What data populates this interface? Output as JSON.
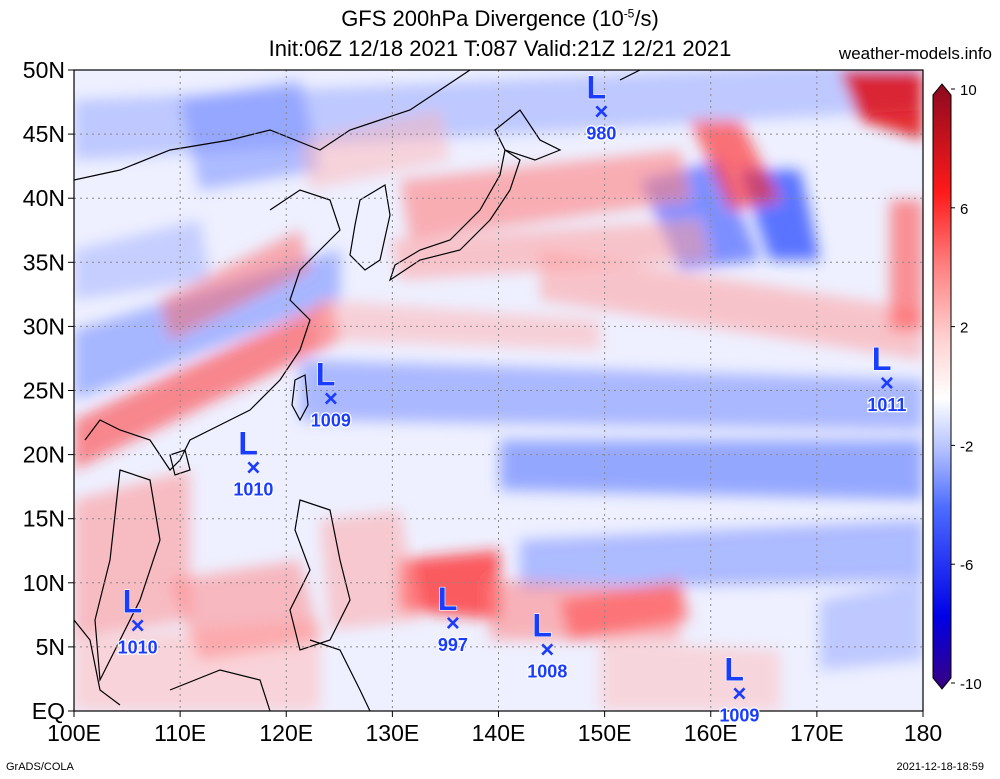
{
  "header": {
    "title_main": "GFS 200hPa Divergence (10",
    "title_sup": "-5",
    "title_tail": "/s)",
    "subtitle": "Init:06Z 12/18 2021 T:087 Valid:21Z 12/21 2021",
    "site": "weather-models.info"
  },
  "footer": {
    "left": "GrADS/COLA",
    "right": "2021-12-18-18:59"
  },
  "map": {
    "lon_labels": [
      "100E",
      "110E",
      "120E",
      "130E",
      "140E",
      "150E",
      "160E",
      "170E",
      "180"
    ],
    "lat_labels": [
      "EQ",
      "5N",
      "10N",
      "15N",
      "20N",
      "25N",
      "30N",
      "35N",
      "40N",
      "45N",
      "50N"
    ],
    "lon_range": [
      100,
      180
    ],
    "lat_range": [
      0,
      50
    ],
    "grid": "dotted"
  },
  "colorbar": {
    "ticks": [
      "10",
      "6",
      "2",
      "-2",
      "-6",
      "-10"
    ],
    "colors": [
      "#3a0080",
      "#0000e6",
      "#4d6cff",
      "#aab8ff",
      "#f2f2ff",
      "#ffffff",
      "#ffe6e6",
      "#ff9e9e",
      "#ff2b2b",
      "#d90000",
      "#8b0a1f"
    ]
  },
  "lows": [
    {
      "lon": 149.7,
      "lat": 46.7,
      "pressure": "980"
    },
    {
      "lon": 124.2,
      "lat": 24.3,
      "pressure": "1009"
    },
    {
      "lon": 116.9,
      "lat": 18.9,
      "pressure": "1010"
    },
    {
      "lon": 106.0,
      "lat": 6.6,
      "pressure": "1010"
    },
    {
      "lon": 135.7,
      "lat": 6.8,
      "pressure": "997"
    },
    {
      "lon": 144.6,
      "lat": 4.7,
      "pressure": "1008"
    },
    {
      "lon": 162.7,
      "lat": 1.3,
      "pressure": "1009"
    },
    {
      "lon": 176.6,
      "lat": 25.5,
      "pressure": "1011"
    }
  ],
  "symbols": {
    "low": "L",
    "center": "×"
  },
  "colors": {
    "low_marker": "#1a3cff",
    "positive": "#ff2020",
    "negative": "#2040ff"
  }
}
